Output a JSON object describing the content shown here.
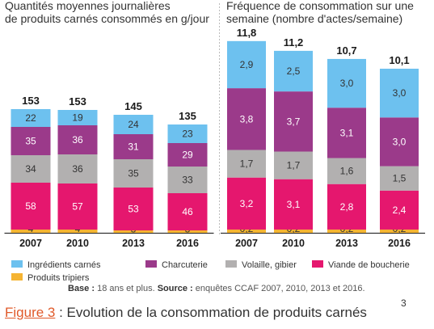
{
  "chart_data": [
    {
      "type": "bar",
      "stacked": true,
      "title_lines": [
        "Quantités moyennes journalières",
        "de produits carnés consommés en g/jour"
      ],
      "categories": [
        "2007",
        "2010",
        "2013",
        "2016"
      ],
      "totals": [
        "153",
        "153",
        "145",
        "135"
      ],
      "series": [
        {
          "name": "Produits tripiers",
          "color": "#f5b432",
          "values": [
            4,
            4,
            3,
            3
          ],
          "labels": [
            "4",
            "4",
            "3",
            "3"
          ],
          "label_color": "#333333"
        },
        {
          "name": "Viande de boucherie",
          "color": "#e5176e",
          "values": [
            58,
            57,
            53,
            46
          ],
          "labels": [
            "58",
            "57",
            "53",
            "46"
          ],
          "label_color": "#ffffff"
        },
        {
          "name": "Volaille, gibier",
          "color": "#b2b0b0",
          "values": [
            34,
            36,
            35,
            33
          ],
          "labels": [
            "34",
            "36",
            "35",
            "33"
          ],
          "label_color": "#333333"
        },
        {
          "name": "Charcuterie",
          "color": "#9b3a8a",
          "values": [
            35,
            36,
            31,
            29
          ],
          "labels": [
            "35",
            "36",
            "31",
            "29"
          ],
          "label_color": "#ffffff"
        },
        {
          "name": "Ingrédients carnés",
          "color": "#6dc1ef",
          "values": [
            22,
            19,
            24,
            23
          ],
          "labels": [
            "22",
            "19",
            "24",
            "23"
          ],
          "label_color": "#333333"
        }
      ]
    },
    {
      "type": "bar",
      "stacked": true,
      "title_lines": [
        "Fréquence de consommation sur une",
        "semaine (nombre d'actes/semaine)"
      ],
      "categories": [
        "2007",
        "2010",
        "2013",
        "2016"
      ],
      "totals": [
        "11,8",
        "11,2",
        "10,7",
        "10,1"
      ],
      "series": [
        {
          "name": "Produits tripiers",
          "color": "#f5b432",
          "values": [
            0.2,
            0.2,
            0.2,
            0.2
          ],
          "labels": [
            "0,2",
            "0,2",
            "0,2",
            "0,2"
          ],
          "label_color": "#333333"
        },
        {
          "name": "Viande de boucherie",
          "color": "#e5176e",
          "values": [
            3.2,
            3.1,
            2.8,
            2.4
          ],
          "labels": [
            "3,2",
            "3,1",
            "2,8",
            "2,4"
          ],
          "label_color": "#ffffff"
        },
        {
          "name": "Volaille, gibier",
          "color": "#b2b0b0",
          "values": [
            1.7,
            1.7,
            1.6,
            1.5
          ],
          "labels": [
            "1,7",
            "1,7",
            "1,6",
            "1,5"
          ],
          "label_color": "#333333"
        },
        {
          "name": "Charcuterie",
          "color": "#9b3a8a",
          "values": [
            3.8,
            3.7,
            3.1,
            3.0
          ],
          "labels": [
            "3,8",
            "3,7",
            "3,1",
            "3,0"
          ],
          "label_color": "#ffffff"
        },
        {
          "name": "Ingrédients carnés",
          "color": "#6dc1ef",
          "values": [
            2.9,
            2.5,
            3.0,
            3.0
          ],
          "labels": [
            "2,9",
            "2,5",
            "3,0",
            "3,0"
          ],
          "label_color": "#333333"
        }
      ]
    }
  ],
  "legend": [
    {
      "label": "Ingrédients carnés",
      "color": "#6dc1ef"
    },
    {
      "label": "Charcuterie",
      "color": "#9b3a8a"
    },
    {
      "label": "Volaille, gibier",
      "color": "#b2b0b0"
    },
    {
      "label": "Viande de boucherie",
      "color": "#e5176e"
    },
    {
      "label": "Produits tripiers",
      "color": "#f5b432"
    }
  ],
  "source_note": {
    "base_label": "Base :",
    "base_text": " 18 ans et plus. ",
    "source_label": "Source :",
    "source_text": " enquêtes CCAF 2007, 2010, 2013 et 2016."
  },
  "caption": {
    "link": "Figure 3",
    "text": " : Evolution de la consommation de produits carnés"
  },
  "page_number": "3"
}
